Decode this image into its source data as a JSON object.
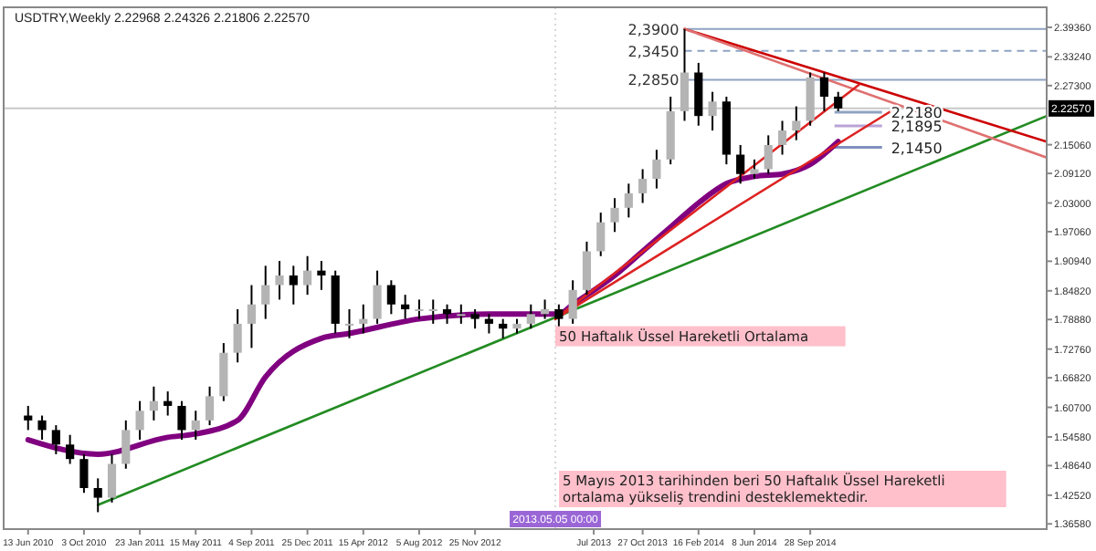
{
  "chart_data": {
    "type": "candlestick",
    "title": "USDTRY,Weekly  2.22968 2.24326 2.21806 2.22570",
    "x": [
      "2010-06-13",
      "2010-07-11",
      "2010-08-08",
      "2010-09-05",
      "2010-10-03",
      "2010-10-31",
      "2010-11-28",
      "2010-12-26",
      "2011-01-23",
      "2011-02-20",
      "2011-03-20",
      "2011-04-17",
      "2011-05-15",
      "2011-06-12",
      "2011-07-10",
      "2011-08-07",
      "2011-09-04",
      "2011-10-02",
      "2011-10-30",
      "2011-11-27",
      "2011-12-25",
      "2012-01-22",
      "2012-02-19",
      "2012-03-18",
      "2012-04-15",
      "2012-05-13",
      "2012-06-10",
      "2012-07-08",
      "2012-08-05",
      "2012-09-02",
      "2012-09-30",
      "2012-10-28",
      "2012-11-25",
      "2012-12-23",
      "2013-01-20",
      "2013-02-17",
      "2013-03-17",
      "2013-04-14",
      "2013-05-12",
      "2013-06-09",
      "2013-07-07",
      "2013-08-04",
      "2013-09-01",
      "2013-09-29",
      "2013-10-27",
      "2013-11-24",
      "2013-12-22",
      "2014-01-19",
      "2014-02-16",
      "2014-03-16",
      "2014-04-13",
      "2014-05-11",
      "2014-06-08",
      "2014-07-06",
      "2014-08-03",
      "2014-08-31",
      "2014-09-28",
      "2014-10-26",
      "2014-11-23"
    ],
    "ohlc": [
      [
        1.59,
        1.61,
        1.56,
        1.58
      ],
      [
        1.58,
        1.59,
        1.54,
        1.56
      ],
      [
        1.56,
        1.57,
        1.51,
        1.53
      ],
      [
        1.53,
        1.55,
        1.49,
        1.5
      ],
      [
        1.5,
        1.51,
        1.43,
        1.44
      ],
      [
        1.44,
        1.46,
        1.39,
        1.42
      ],
      [
        1.42,
        1.51,
        1.41,
        1.49
      ],
      [
        1.49,
        1.58,
        1.48,
        1.56
      ],
      [
        1.56,
        1.62,
        1.54,
        1.6
      ],
      [
        1.6,
        1.65,
        1.58,
        1.62
      ],
      [
        1.62,
        1.64,
        1.59,
        1.61
      ],
      [
        1.61,
        1.62,
        1.54,
        1.56
      ],
      [
        1.56,
        1.6,
        1.54,
        1.58
      ],
      [
        1.58,
        1.65,
        1.57,
        1.63
      ],
      [
        1.63,
        1.74,
        1.62,
        1.72
      ],
      [
        1.72,
        1.81,
        1.7,
        1.78
      ],
      [
        1.78,
        1.86,
        1.73,
        1.82
      ],
      [
        1.82,
        1.9,
        1.79,
        1.86
      ],
      [
        1.86,
        1.91,
        1.83,
        1.88
      ],
      [
        1.88,
        1.9,
        1.82,
        1.86
      ],
      [
        1.86,
        1.92,
        1.84,
        1.89
      ],
      [
        1.89,
        1.91,
        1.85,
        1.88
      ],
      [
        1.88,
        1.89,
        1.76,
        1.78
      ],
      [
        1.78,
        1.81,
        1.75,
        1.78
      ],
      [
        1.78,
        1.82,
        1.76,
        1.79
      ],
      [
        1.79,
        1.89,
        1.78,
        1.86
      ],
      [
        1.86,
        1.87,
        1.8,
        1.82
      ],
      [
        1.82,
        1.84,
        1.79,
        1.81
      ],
      [
        1.81,
        1.83,
        1.79,
        1.81
      ],
      [
        1.81,
        1.83,
        1.78,
        1.81
      ],
      [
        1.81,
        1.82,
        1.78,
        1.8
      ],
      [
        1.8,
        1.82,
        1.78,
        1.8
      ],
      [
        1.8,
        1.81,
        1.77,
        1.79
      ],
      [
        1.79,
        1.8,
        1.76,
        1.78
      ],
      [
        1.78,
        1.79,
        1.75,
        1.77
      ],
      [
        1.77,
        1.79,
        1.76,
        1.78
      ],
      [
        1.78,
        1.82,
        1.77,
        1.8
      ],
      [
        1.8,
        1.83,
        1.79,
        1.81
      ],
      [
        1.81,
        1.82,
        1.77,
        1.79
      ],
      [
        1.79,
        1.87,
        1.78,
        1.85
      ],
      [
        1.85,
        1.95,
        1.84,
        1.93
      ],
      [
        1.93,
        2.01,
        1.92,
        1.99
      ],
      [
        1.99,
        2.04,
        1.97,
        2.02
      ],
      [
        2.02,
        2.07,
        2.0,
        2.05
      ],
      [
        2.05,
        2.1,
        2.03,
        2.08
      ],
      [
        2.08,
        2.14,
        2.06,
        2.12
      ],
      [
        2.12,
        2.25,
        2.11,
        2.22
      ],
      [
        2.22,
        2.39,
        2.2,
        2.3
      ],
      [
        2.3,
        2.32,
        2.19,
        2.21
      ],
      [
        2.21,
        2.26,
        2.18,
        2.24
      ],
      [
        2.24,
        2.25,
        2.11,
        2.13
      ],
      [
        2.13,
        2.15,
        2.07,
        2.09
      ],
      [
        2.09,
        2.12,
        2.08,
        2.1
      ],
      [
        2.1,
        2.17,
        2.09,
        2.15
      ],
      [
        2.15,
        2.2,
        2.13,
        2.18
      ],
      [
        2.18,
        2.23,
        2.16,
        2.2
      ],
      [
        2.2,
        2.3,
        2.19,
        2.29
      ],
      [
        2.29,
        2.3,
        2.22,
        2.25
      ],
      [
        2.25,
        2.26,
        2.22,
        2.2257
      ]
    ],
    "series": [
      {
        "type": "line",
        "color": "#800080",
        "x": [
          "2010-06-13",
          "2010-10-31",
          "2011-03-20",
          "2011-05-15",
          "2011-08-07",
          "2011-10-02",
          "2012-01-22",
          "2012-03-18",
          "2012-08-05",
          "2012-12-23",
          "2013-05-12",
          "2013-06-09",
          "2013-09-01",
          "2013-10-27",
          "2013-12-22",
          "2014-02-16",
          "2014-04-13",
          "2014-06-08",
          "2014-08-03",
          "2014-09-28",
          "2014-11-23"
        ],
        "values": [
          1.54,
          1.51,
          1.545,
          1.552,
          1.58,
          1.67,
          1.75,
          1.76,
          1.79,
          1.8,
          1.8,
          1.82,
          1.88,
          1.93,
          1.98,
          2.03,
          2.07,
          2.085,
          2.09,
          2.11,
          2.157
        ]
      },
      {
        "type": "line",
        "color": "#228b22",
        "x": [
          "2010-10-31",
          "2016-01-15"
        ],
        "values": [
          1.405,
          2.21
        ]
      },
      {
        "type": "line",
        "color": "#cc0000",
        "x": [
          "2014-01-19",
          "2016-01-15"
        ],
        "values": [
          2.39,
          2.157
        ]
      },
      {
        "type": "line",
        "color": "#e07070",
        "x": [
          "2014-01-19",
          "2016-01-15"
        ],
        "values": [
          2.39,
          2.124
        ]
      },
      {
        "type": "line",
        "color": "#dd2222",
        "x": [
          "2013-05-05",
          "2015-01-04"
        ],
        "values": [
          1.79,
          2.275
        ]
      },
      {
        "type": "line",
        "color": "#dd2222",
        "x": [
          "2013-05-05",
          "2015-03-15"
        ],
        "values": [
          1.79,
          2.224
        ]
      }
    ],
    "ref_lines": [
      {
        "axis": "y",
        "value": 2.39,
        "label": "2,3900",
        "color": "#8fa3c3"
      },
      {
        "axis": "y",
        "value": 2.345,
        "label": "2,3450",
        "color": "#8fa3c3",
        "line_style": "dashed"
      },
      {
        "axis": "y",
        "value": 2.285,
        "label": "2,2850",
        "color": "#8fa3c3"
      },
      {
        "axis": "y",
        "value": 2.218,
        "label": "2,2180",
        "color": "#8fa3c3"
      },
      {
        "axis": "y",
        "value": 2.1895,
        "label": "2,1895",
        "color": "#b9a3d6"
      },
      {
        "axis": "y",
        "value": 2.145,
        "label": "2,1450",
        "color": "#7f8fbf"
      },
      {
        "axis": "y",
        "value": 2.2257,
        "label": "2.22570",
        "color": "#c8c8c8"
      },
      {
        "axis": "x",
        "value": "2013-05-05",
        "label": "2013.05.05 00:00",
        "color": "#d8d8d8",
        "line_style": "dotted"
      }
    ],
    "annotations": [
      {
        "text": "50 Haftalık Üssel Hareketli Ortalama",
        "x": "2013-05-05",
        "y": 1.79
      },
      "5 Mayıs 2013 tarihinden beri 50 Haftalık Üssel Hareketli\nortalama yükseliş trendini desteklemektedir."
    ],
    "xlim": [
      "2010-04-25",
      "2016-01-15"
    ],
    "xticks": [
      {
        "value": "2010-06-13",
        "label": "13 Jun 2010"
      },
      {
        "value": "2010-10-03",
        "label": "3 Oct 2010"
      },
      {
        "value": "2011-01-23",
        "label": "23 Jan 2011"
      },
      {
        "value": "2011-05-15",
        "label": "15 May 2011"
      },
      {
        "value": "2011-09-04",
        "label": "4 Sep 2011"
      },
      {
        "value": "2011-12-25",
        "label": "25 Dec 2011"
      },
      {
        "value": "2012-04-15",
        "label": "15 Apr 2012"
      },
      {
        "value": "2012-08-05",
        "label": "5 Aug 2012"
      },
      {
        "value": "2012-11-25",
        "label": "25 Nov 2012"
      },
      {
        "value": "2013-07-21",
        "label": "Jul 2013"
      },
      {
        "value": "2013-10-27",
        "label": "27 Oct 2013"
      },
      {
        "value": "2014-02-16",
        "label": "16 Feb 2014"
      },
      {
        "value": "2014-06-08",
        "label": "8 Jun 2014"
      },
      {
        "value": "2014-09-28",
        "label": "28 Sep 2014"
      }
    ],
    "ylim": [
      1.355,
      2.435
    ],
    "yticks": [
      {
        "value": 2.3936,
        "label": "2.39360"
      },
      {
        "value": 2.3324,
        "label": "2.33240"
      },
      {
        "value": 2.273,
        "label": "2.27300"
      },
      {
        "value": 2.1506,
        "label": "2.15060"
      },
      {
        "value": 2.0912,
        "label": "2.09120"
      },
      {
        "value": 2.03,
        "label": "2.03000"
      },
      {
        "value": 1.9706,
        "label": "1.97060"
      },
      {
        "value": 1.9094,
        "label": "1.90940"
      },
      {
        "value": 1.8482,
        "label": "1.84820"
      },
      {
        "value": 1.7888,
        "label": "1.78880"
      },
      {
        "value": 1.7276,
        "label": "1.72760"
      },
      {
        "value": 1.6682,
        "label": "1.66820"
      },
      {
        "value": 1.607,
        "label": "1.60700"
      },
      {
        "value": 1.5458,
        "label": "1.54580"
      },
      {
        "value": 1.4864,
        "label": "1.48640"
      },
      {
        "value": 1.4252,
        "label": "1.42520"
      },
      {
        "value": 1.3658,
        "label": "1.36580"
      }
    ],
    "grid": false
  }
}
